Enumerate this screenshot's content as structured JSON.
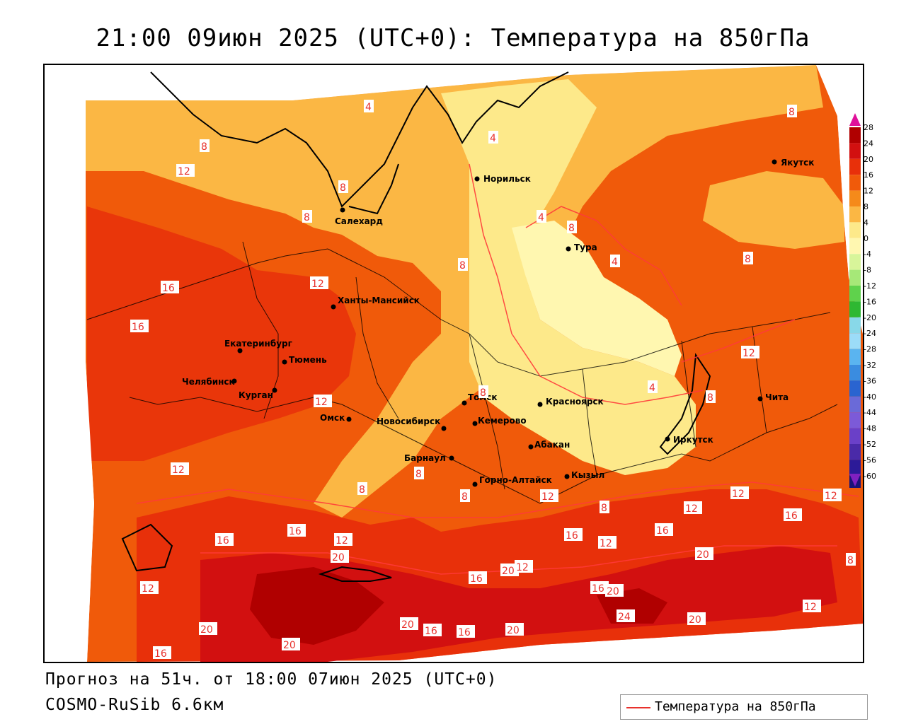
{
  "title": "21:00 09июн 2025 (UTC+0): Температура на 850гПа",
  "forecast": "Прогноз на 51ч. от 18:00 07июн 2025 (UTC+0)",
  "model": "COSMO-RuSib 6.6км",
  "legend": {
    "label": "Температура на 850гПа",
    "line_color": "#e8312c"
  },
  "colorbar": {
    "labels": [
      "28",
      "24",
      "20",
      "16",
      "12",
      "8",
      "4",
      "0",
      "-4",
      "-8",
      "-12",
      "-16",
      "-20",
      "-24",
      "-28",
      "-32",
      "-36",
      "-40",
      "-44",
      "-48",
      "-52",
      "-56",
      "-60"
    ],
    "colors": [
      "#b00000",
      "#d21010",
      "#e8300a",
      "#f05a0a",
      "#f58a1a",
      "#fbb744",
      "#fde98a",
      "#fff7b0",
      "#d8f59a",
      "#a6e878",
      "#5fd24c",
      "#2eb832",
      "#88d8e8",
      "#9cdcf8",
      "#5ab4f0",
      "#3a8ce0",
      "#2a64d0",
      "#6a6ad8",
      "#7c5ad8",
      "#6a40c8",
      "#4a2aa8",
      "#2c1a98",
      "#1a1278"
    ],
    "top_arrow_color": "#e0109a",
    "bottom_arrow_color": "#8020c0"
  },
  "cities": [
    {
      "name": "Норильск"
    },
    {
      "name": "Якутск"
    },
    {
      "name": "Салехард"
    },
    {
      "name": "Тура"
    },
    {
      "name": "Ханты-Мансийск"
    },
    {
      "name": "Екатеринбург"
    },
    {
      "name": "Тюмень"
    },
    {
      "name": "Челябинск"
    },
    {
      "name": "Курган"
    },
    {
      "name": "Томск"
    },
    {
      "name": "Красноярск"
    },
    {
      "name": "Омск"
    },
    {
      "name": "Новосибирск"
    },
    {
      "name": "Кемерово"
    },
    {
      "name": "Абакан"
    },
    {
      "name": "Иркутск"
    },
    {
      "name": "Чита"
    },
    {
      "name": "Барнаул"
    },
    {
      "name": "Горно-Алтайск"
    },
    {
      "name": "Кызыл"
    }
  ],
  "isotherm_labels": [
    "4",
    "8",
    "12",
    "16",
    "20",
    "24"
  ]
}
